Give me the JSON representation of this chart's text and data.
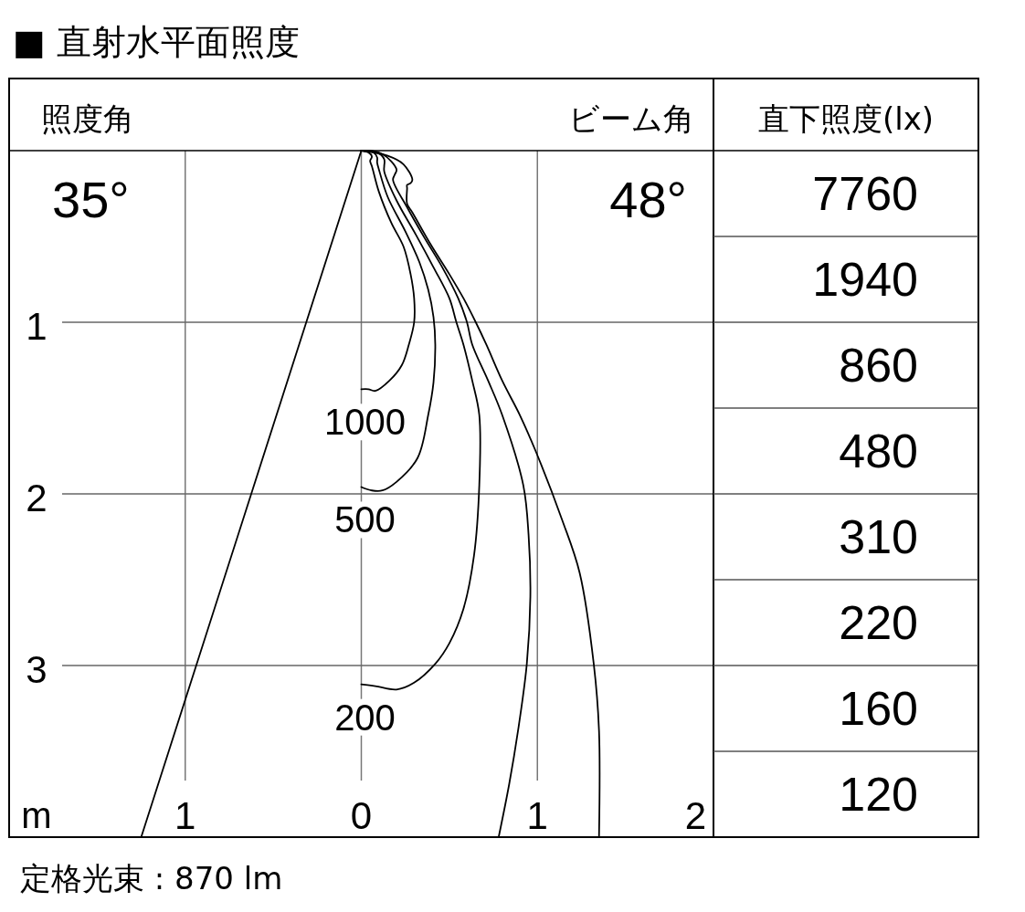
{
  "chart_data": [
    {
      "type": "line",
      "title": "■ 直射水平面照度",
      "xlabel": "m",
      "annotations": [
        "照度角",
        "ビーム角",
        "35°",
        "48°",
        "定格光束 : 870 lm"
      ],
      "xlim": [
        -2,
        2
      ],
      "ylim": [
        4,
        0
      ],
      "xticks": [
        {
          "value": -1,
          "label": "1"
        },
        0,
        1,
        2
      ],
      "yticks": [
        1,
        2,
        3
      ],
      "grid": true,
      "series": [
        {
          "name": "1000",
          "color": "#000000",
          "x": [
            0,
            0.04,
            0.06,
            0.05,
            0.06,
            0.1,
            0.17,
            0.24,
            0.28,
            0.3,
            0.3,
            0.27,
            0.23,
            0.16,
            0.08,
            0.04,
            0
          ],
          "values": [
            0,
            0.01,
            0.035,
            0.06,
            0.09,
            0.24,
            0.42,
            0.56,
            0.72,
            0.86,
            1.0,
            1.13,
            1.25,
            1.34,
            1.4,
            1.39,
            1.39
          ]
        },
        {
          "name": "500",
          "color": "#000000",
          "x": [
            0,
            0.07,
            0.09,
            0.09,
            0.1,
            0.15,
            0.25,
            0.33,
            0.38,
            0.41,
            0.42,
            0.41,
            0.38,
            0.32,
            0.2,
            0.12,
            0.06,
            0
          ],
          "values": [
            0,
            0.01,
            0.04,
            0.07,
            0.11,
            0.27,
            0.47,
            0.65,
            0.81,
            0.97,
            1.13,
            1.35,
            1.54,
            1.79,
            1.93,
            1.98,
            1.98,
            1.96
          ]
        },
        {
          "name": "200",
          "color": "#000000",
          "x": [
            0,
            0.09,
            0.13,
            0.13,
            0.13,
            0.2,
            0.31,
            0.41,
            0.5,
            0.54,
            0.58,
            0.63,
            0.67,
            0.67,
            0.64,
            0.58,
            0.5,
            0.42,
            0.3,
            0.2,
            0.08,
            0
          ],
          "values": [
            0,
            0.01,
            0.05,
            0.09,
            0.12,
            0.29,
            0.49,
            0.68,
            0.86,
            1.0,
            1.13,
            1.34,
            1.54,
            1.95,
            2.36,
            2.67,
            2.87,
            2.99,
            3.1,
            3.14,
            3.12,
            3.11
          ]
        },
        {
          "color": "#000000",
          "x": [
            0,
            0.12,
            0.2,
            0.19,
            0.18,
            0.26,
            0.36,
            0.46,
            0.55,
            0.6,
            0.63,
            0.72,
            0.8,
            0.92,
            0.95,
            0.96,
            0.94,
            0.89,
            0.84,
            0.78
          ],
          "values": [
            0,
            0.02,
            0.11,
            0.14,
            0.17,
            0.33,
            0.51,
            0.68,
            0.86,
            1.0,
            1.13,
            1.34,
            1.54,
            1.95,
            2.24,
            2.6,
            2.99,
            3.38,
            3.69,
            4.0
          ]
        },
        {
          "color": "#000000",
          "x": [
            0,
            0.15,
            0.24,
            0.29,
            0.28,
            0.26,
            0.26,
            0.26,
            0.29,
            0.39,
            0.5,
            0.58,
            0.65,
            0.71,
            0.8,
            0.9,
            0.99,
            1.14,
            1.24,
            1.32,
            1.35,
            1.35
          ],
          "values": [
            0,
            0.03,
            0.08,
            0.17,
            0.19,
            0.2,
            0.22,
            0.31,
            0.36,
            0.54,
            0.72,
            0.86,
            1.0,
            1.13,
            1.34,
            1.54,
            1.75,
            2.15,
            2.46,
            2.99,
            3.38,
            4.0
          ]
        },
        {
          "color": "#000000",
          "x": [
            0,
            -1.25
          ],
          "values": [
            0,
            4
          ]
        }
      ]
    },
    {
      "type": "other",
      "title": "直下照度(lx)",
      "values": [
        7760,
        1940,
        860,
        480,
        310,
        220,
        160,
        120
      ],
      "data_labels": true
    }
  ]
}
